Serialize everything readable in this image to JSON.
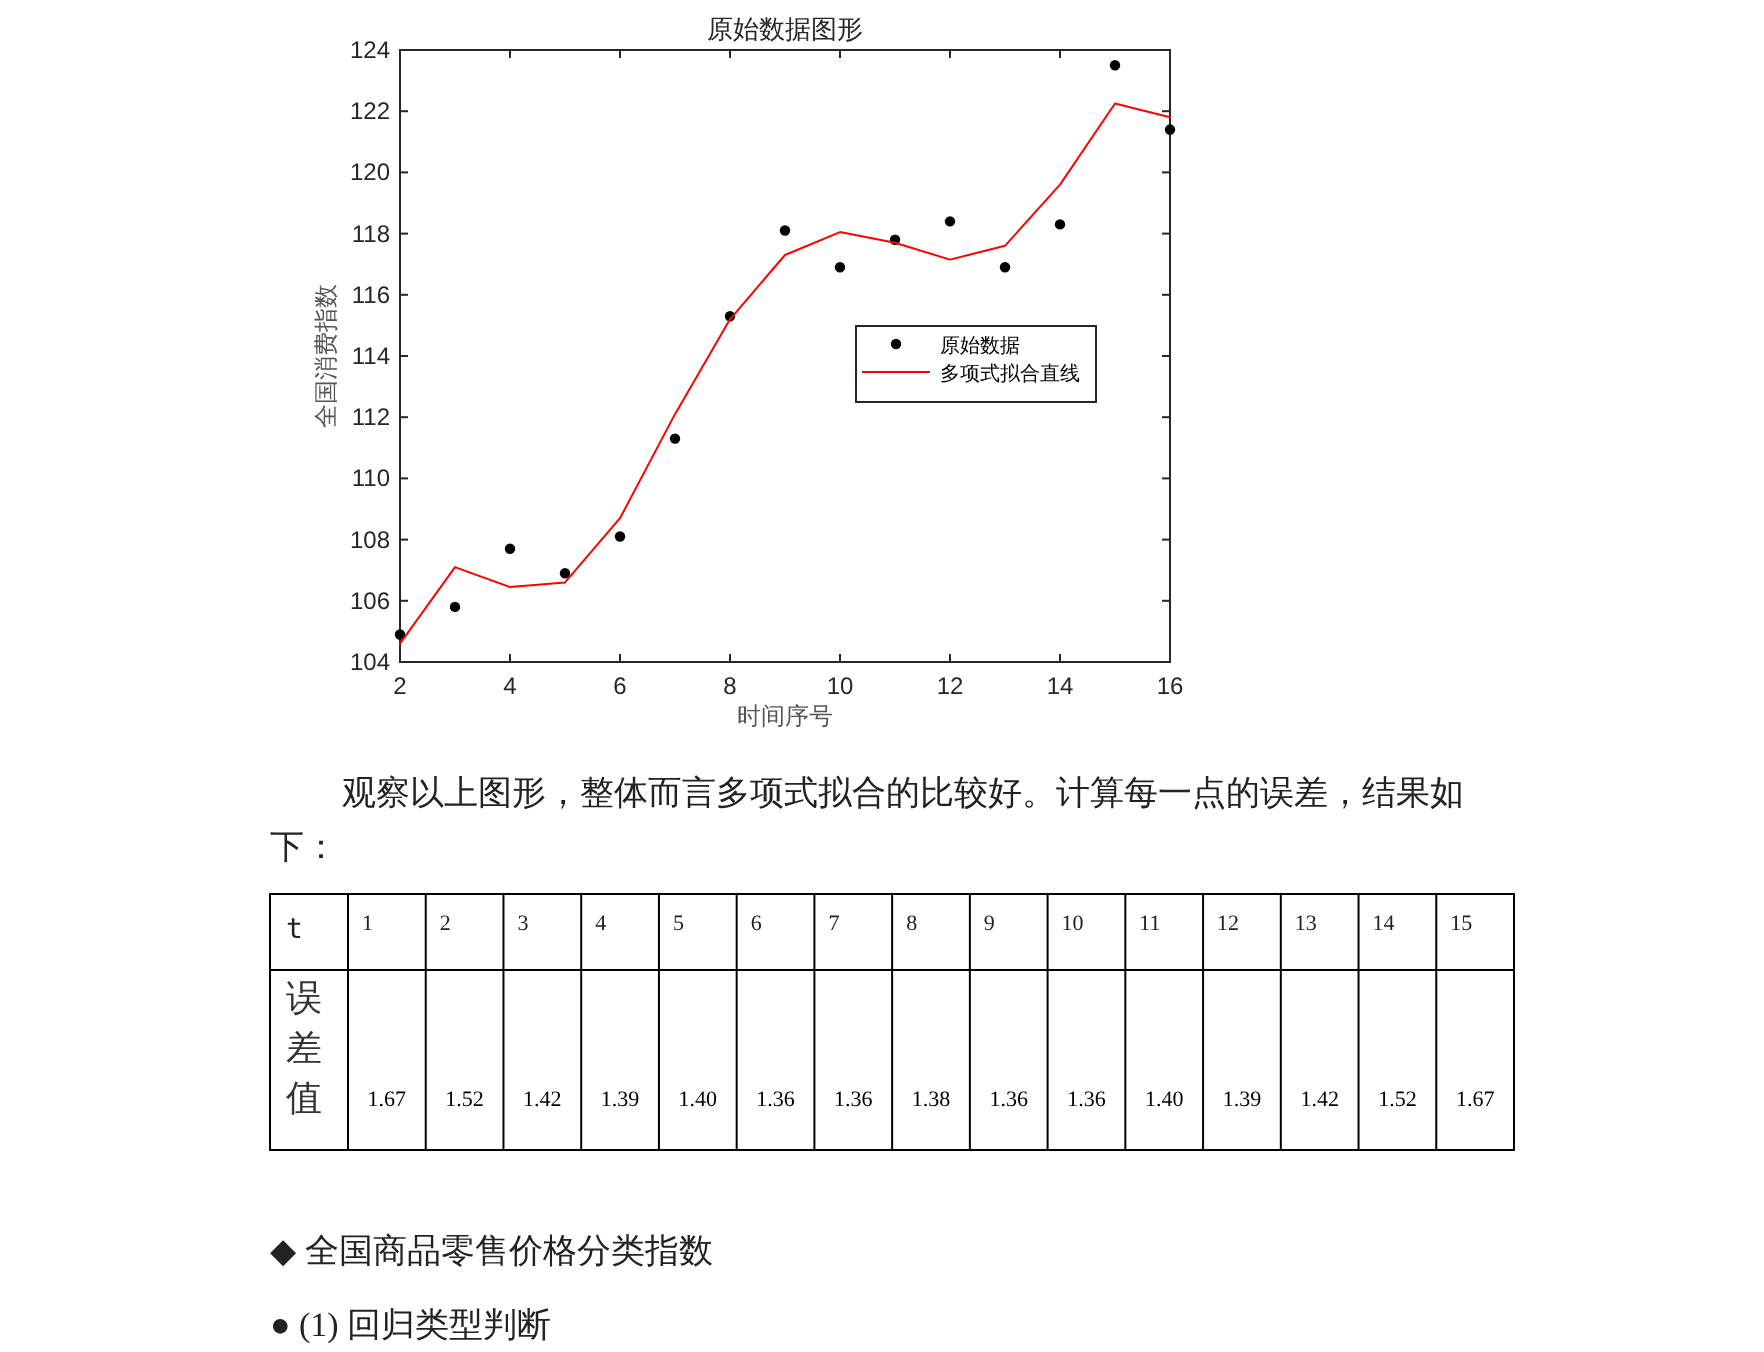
{
  "chart_data": [
    {
      "type": "line",
      "title": "原始数据图形",
      "xlabel": "时间序号",
      "ylabel": "全国消费指数",
      "x": [
        2,
        3,
        4,
        5,
        6,
        7,
        8,
        9,
        10,
        11,
        12,
        13,
        14,
        15,
        16
      ],
      "series": [
        {
          "name": "原始数据",
          "type": "scatter",
          "marker": "circle",
          "color": "#000000",
          "values": [
            104.9,
            105.8,
            107.7,
            106.9,
            108.1,
            111.3,
            115.3,
            118.1,
            116.9,
            117.8,
            118.4,
            116.9,
            118.3,
            123.5,
            121.4
          ]
        },
        {
          "name": "多项式拟合直线",
          "type": "line",
          "marker": "none",
          "color": "#ff0000",
          "values": [
            104.6,
            107.1,
            106.45,
            106.6,
            108.7,
            112.1,
            115.2,
            117.3,
            118.05,
            117.7,
            117.15,
            117.6,
            119.6,
            122.25,
            121.8
          ]
        }
      ],
      "xlim": [
        2,
        16
      ],
      "ylim": [
        104,
        124
      ],
      "xticks": [
        2,
        4,
        6,
        8,
        10,
        12,
        14,
        16
      ],
      "yticks": [
        104,
        106,
        108,
        110,
        112,
        114,
        116,
        118,
        120,
        122,
        124
      ],
      "grid": false,
      "legend": "right"
    },
    {
      "type": "heatmap",
      "title": "观察以上图形，整体而言多项式拟合的比较好。计算每一点的误差，结果如下：",
      "xlabel": "t",
      "categories": [
        "1",
        "2",
        "3",
        "4",
        "5",
        "6",
        "7",
        "8",
        "9",
        "10",
        "11",
        "12",
        "13",
        "14",
        "15"
      ],
      "y_categories": [
        "误差值"
      ],
      "cell_labels": [
        [
          "1.67",
          "1.52",
          "1.42",
          "1.39",
          "1.40",
          "1.36",
          "1.36",
          "1.38",
          "1.36",
          "1.36",
          "1.40",
          "1.39",
          "1.42",
          "1.52",
          "1.67"
        ]
      ],
      "cells": [
        [
          1.67,
          1.52,
          1.42,
          1.39,
          1.4,
          1.36,
          1.36,
          1.38,
          1.36,
          1.36,
          1.4,
          1.39,
          1.42,
          1.52,
          1.67
        ]
      ],
      "annotations": [
        "◆ 全国商品零售价格分类指数",
        "● (1) 回归类型判断"
      ]
    }
  ]
}
